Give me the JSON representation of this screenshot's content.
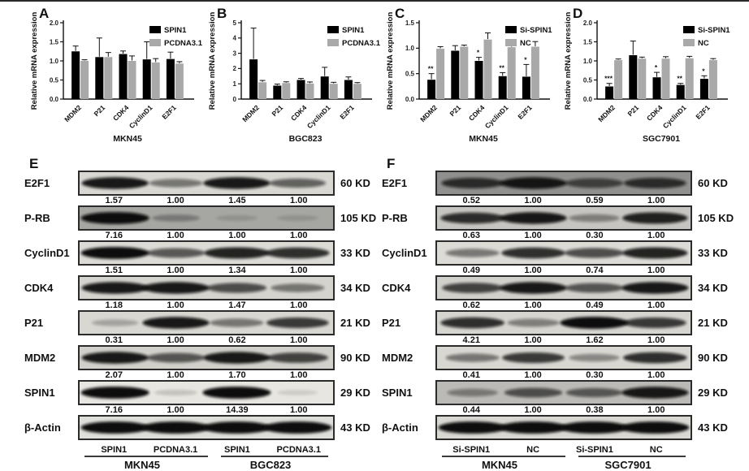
{
  "figure": {
    "bar_black": "#000000",
    "bar_gray": "#a9a9a9",
    "axis_color": "#111111",
    "ylabel": "Relative mRNA expression"
  },
  "chart_data": [
    {
      "panel": "A",
      "type": "bar",
      "title": "MKN45",
      "ylabel": "Relative mRNA expression",
      "ylim": [
        0,
        2.0
      ],
      "yticks": [
        "0.0",
        "0.5",
        "1.0",
        "1.5",
        "2.0"
      ],
      "categories": [
        "MDM2",
        "P21",
        "CDK4",
        "CyclinD1",
        "E2F1"
      ],
      "legend_position": "top-right",
      "series": [
        {
          "name": "SPIN1",
          "color": "#000000",
          "values": [
            1.25,
            1.1,
            1.18,
            1.04,
            1.05
          ],
          "errors": [
            0.14,
            0.5,
            0.08,
            0.46,
            0.18
          ],
          "sig": [
            "",
            "",
            "",
            "",
            ""
          ]
        },
        {
          "name": "PCDNA3.1",
          "color": "#a9a9a9",
          "values": [
            1.0,
            1.1,
            1.0,
            0.96,
            0.93
          ],
          "errors": [
            0.03,
            0.12,
            0.13,
            0.1,
            0.05
          ],
          "sig": [
            "",
            "",
            "",
            "",
            ""
          ]
        }
      ]
    },
    {
      "panel": "B",
      "type": "bar",
      "title": "BGC823",
      "ylabel": "Relative mRNA expression",
      "ylim": [
        0,
        5
      ],
      "yticks": [
        "0",
        "1",
        "2",
        "3",
        "4",
        "5"
      ],
      "categories": [
        "MDM2",
        "P21",
        "CDK4",
        "CyclinD1",
        "E2F1"
      ],
      "legend_position": "top-right",
      "series": [
        {
          "name": "SPIN1",
          "color": "#000000",
          "values": [
            2.6,
            0.88,
            1.25,
            1.48,
            1.25
          ],
          "errors": [
            2.05,
            0.1,
            0.1,
            0.6,
            0.2
          ],
          "sig": [
            "",
            "",
            "",
            "",
            ""
          ]
        },
        {
          "name": "PCDNA3.1",
          "color": "#a9a9a9",
          "values": [
            1.1,
            1.05,
            1.02,
            1.0,
            1.0
          ],
          "errors": [
            0.12,
            0.08,
            0.1,
            0.1,
            0.08
          ],
          "sig": [
            "",
            "",
            "",
            "",
            ""
          ]
        }
      ]
    },
    {
      "panel": "C",
      "type": "bar",
      "title": "MKN45",
      "ylabel": "Relative mRNA expression",
      "ylim": [
        0,
        1.5
      ],
      "yticks": [
        "0.0",
        "0.5",
        "1.0",
        "1.5"
      ],
      "categories": [
        "MDM2",
        "P21",
        "CDK4",
        "CyclinD1",
        "E2F1"
      ],
      "legend_position": "top-right",
      "series": [
        {
          "name": "Si-SPIN1",
          "color": "#000000",
          "values": [
            0.38,
            0.95,
            0.75,
            0.45,
            0.44
          ],
          "errors": [
            0.12,
            0.1,
            0.07,
            0.07,
            0.24
          ],
          "sig": [
            "**",
            "",
            "*",
            "**",
            "*"
          ]
        },
        {
          "name": "NC",
          "color": "#a9a9a9",
          "values": [
            0.99,
            1.03,
            1.17,
            1.02,
            1.03
          ],
          "errors": [
            0.04,
            0.03,
            0.13,
            0.1,
            0.1
          ],
          "sig": [
            "",
            "",
            "",
            "",
            ""
          ]
        }
      ]
    },
    {
      "panel": "D",
      "type": "bar",
      "title": "SGC7901",
      "ylabel": "Relative mRNA expression",
      "ylim": [
        0,
        2.0
      ],
      "yticks": [
        "0.0",
        "0.5",
        "1.0",
        "1.5",
        "2.0"
      ],
      "categories": [
        "MDM2",
        "P21",
        "CDK4",
        "CyclinD1",
        "E2F1"
      ],
      "legend_position": "top-right",
      "series": [
        {
          "name": "Si-SPIN1",
          "color": "#000000",
          "values": [
            0.33,
            1.15,
            0.57,
            0.37,
            0.53
          ],
          "errors": [
            0.08,
            0.37,
            0.13,
            0.04,
            0.08
          ],
          "sig": [
            "***",
            "",
            "*",
            "**",
            "*"
          ]
        },
        {
          "name": "NC",
          "color": "#a9a9a9",
          "values": [
            1.02,
            1.06,
            1.06,
            1.07,
            1.02
          ],
          "errors": [
            0.03,
            0.04,
            0.05,
            0.05,
            0.04
          ],
          "sig": [
            "",
            "",
            "",
            "",
            ""
          ]
        }
      ]
    }
  ],
  "blot_data": {
    "lane_positions_pct": [
      14,
      38,
      62,
      86
    ],
    "panels": [
      {
        "letter": "E",
        "lanes": [
          "SPIN1",
          "PCDNA3.1",
          "SPIN1",
          "PCDNA3.1"
        ],
        "groups": [
          "MKN45",
          "BGC823"
        ],
        "rows": [
          {
            "protein": "E2F1",
            "kd": "60 KD",
            "values": [
              "1.57",
              "1.00",
              "1.45",
              "1.00"
            ],
            "bands": [
              0.95,
              0.5,
              0.95,
              0.6
            ],
            "bg": "#d8d7d2"
          },
          {
            "protein": "P-RB",
            "kd": "105 KD",
            "values": [
              "7.16",
              "1.00",
              "1.00",
              "1.00"
            ],
            "bands": [
              1.0,
              0.3,
              0.08,
              0.08
            ],
            "bg": "#a6a6a3"
          },
          {
            "protein": "CyclinD1",
            "kd": "33 KD",
            "values": [
              "1.51",
              "1.00",
              "1.34",
              "1.00"
            ],
            "bands": [
              1.0,
              0.65,
              0.9,
              0.85
            ],
            "bg": "#dcdbd6"
          },
          {
            "protein": "CDK4",
            "kd": "34 KD",
            "values": [
              "1.18",
              "1.00",
              "1.47",
              "1.00"
            ],
            "bands": [
              0.95,
              0.95,
              0.7,
              0.5
            ],
            "bg": "#d4d3ce"
          },
          {
            "protein": "P21",
            "kd": "21 KD",
            "values": [
              "0.31",
              "1.00",
              "0.62",
              "1.00"
            ],
            "bands": [
              0.25,
              0.95,
              0.5,
              0.8
            ],
            "bg": "#d8d7d2"
          },
          {
            "protein": "MDM2",
            "kd": "90 KD",
            "values": [
              "2.07",
              "1.00",
              "1.70",
              "1.00"
            ],
            "bands": [
              0.95,
              0.65,
              0.95,
              0.75
            ],
            "bg": "#d1d0cb"
          },
          {
            "protein": "SPIN1",
            "kd": "29 KD",
            "values": [
              "7.16",
              "1.00",
              "14.39",
              "1.00"
            ],
            "bands": [
              1.0,
              0.12,
              1.0,
              0.04
            ],
            "bg": "#e7e6e1"
          },
          {
            "protein": "β-Actin",
            "kd": "43 KD",
            "values": null,
            "bands": [
              1.0,
              1.0,
              1.0,
              1.0
            ],
            "bg": "#dededa"
          }
        ]
      },
      {
        "letter": "F",
        "lanes": [
          "Si-SPIN1",
          "NC",
          "Si-SPIN1",
          "NC"
        ],
        "groups": [
          "MKN45",
          "SGC7901"
        ],
        "rows": [
          {
            "protein": "E2F1",
            "kd": "60 KD",
            "values": [
              "0.52",
              "1.00",
              "0.59",
              "1.00"
            ],
            "bands": [
              0.8,
              0.95,
              0.65,
              0.8
            ],
            "bg": "#90908e"
          },
          {
            "protein": "P-RB",
            "kd": "105 KD",
            "values": [
              "0.63",
              "1.00",
              "0.30",
              "1.00"
            ],
            "bands": [
              0.85,
              0.95,
              0.4,
              0.9
            ],
            "bg": "#c6c5c1"
          },
          {
            "protein": "CyclinD1",
            "kd": "33 KD",
            "values": [
              "0.49",
              "1.00",
              "0.74",
              "1.00"
            ],
            "bands": [
              0.5,
              0.85,
              0.7,
              0.9
            ],
            "bg": "#dcdbd6"
          },
          {
            "protein": "CDK4",
            "kd": "34 KD",
            "values": [
              "0.62",
              "1.00",
              "0.49",
              "1.00"
            ],
            "bands": [
              0.75,
              0.95,
              0.65,
              0.95
            ],
            "bg": "#d1d0cb"
          },
          {
            "protein": "P21",
            "kd": "21 KD",
            "values": [
              "4.21",
              "1.00",
              "1.62",
              "1.00"
            ],
            "bands": [
              0.85,
              0.45,
              1.0,
              0.8
            ],
            "bg": "#d6d5d0"
          },
          {
            "protein": "MDM2",
            "kd": "90 KD",
            "values": [
              "0.41",
              "1.00",
              "0.30",
              "1.00"
            ],
            "bands": [
              0.5,
              0.8,
              0.4,
              0.85
            ],
            "bg": "#d8d7d2"
          },
          {
            "protein": "SPIN1",
            "kd": "29 KD",
            "values": [
              "0.44",
              "1.00",
              "0.38",
              "1.00"
            ],
            "bands": [
              0.4,
              0.65,
              0.6,
              0.95
            ],
            "bg": "#bbbab6"
          },
          {
            "protein": "β-Actin",
            "kd": "43 KD",
            "values": null,
            "bands": [
              1.0,
              1.0,
              1.0,
              1.0
            ],
            "bg": "#d9d8d3"
          }
        ]
      }
    ]
  }
}
